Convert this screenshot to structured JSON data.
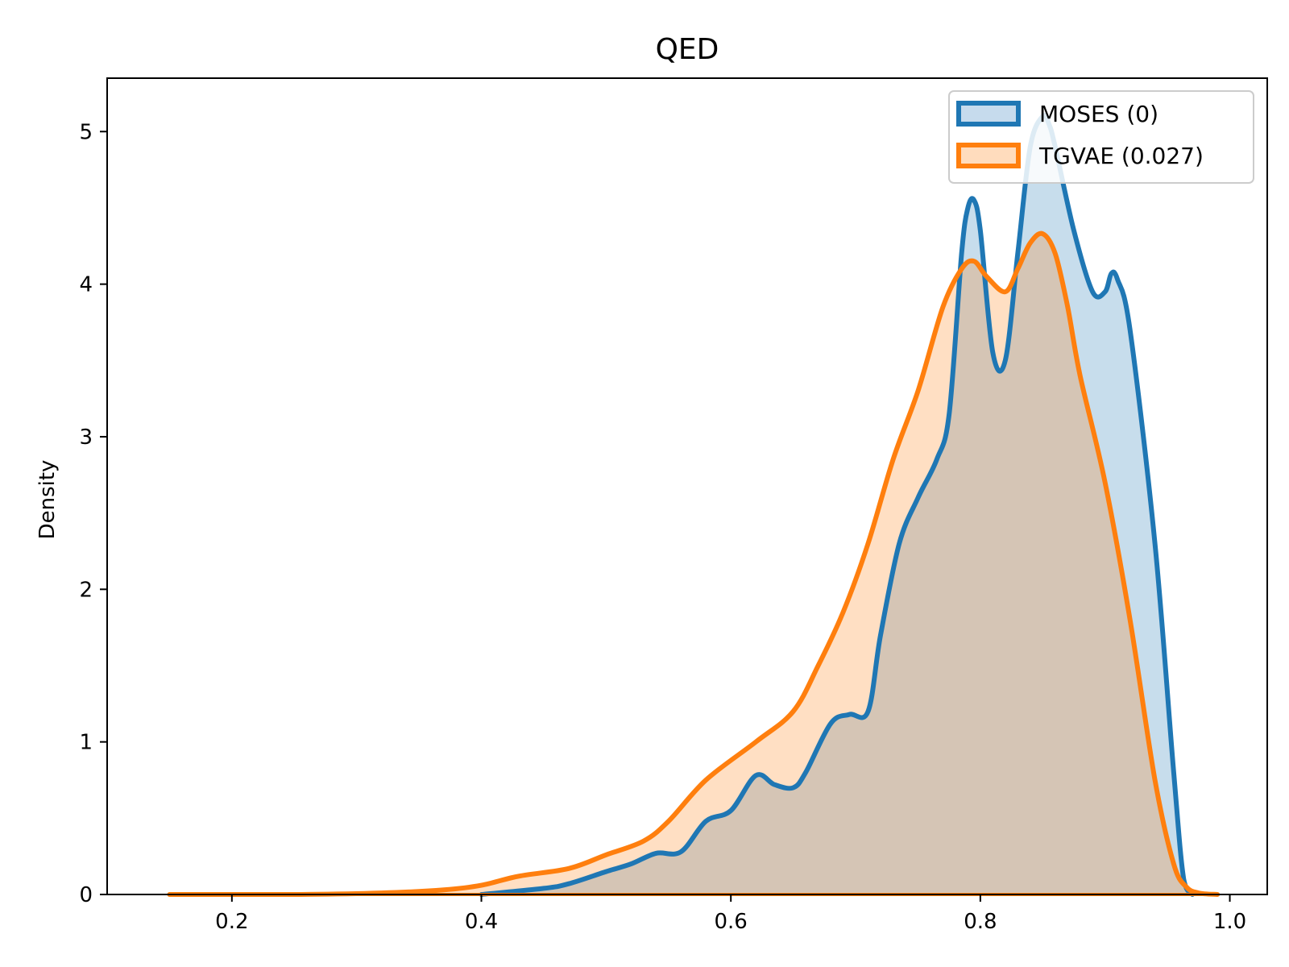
{
  "chart_data": {
    "type": "area",
    "title": "QED",
    "xlabel": "",
    "ylabel": "Density",
    "xlim": [
      0.1,
      1.03
    ],
    "ylim": [
      0,
      5.35
    ],
    "xticks": [
      0.2,
      0.4,
      0.6,
      0.8,
      1.0
    ],
    "xtick_labels": [
      "0.2",
      "0.4",
      "0.6",
      "0.8",
      "1.0"
    ],
    "yticks": [
      0,
      1,
      2,
      3,
      4,
      5
    ],
    "ytick_labels": [
      "0",
      "1",
      "2",
      "3",
      "4",
      "5"
    ],
    "grid": false,
    "legend_position": "top-right",
    "series": [
      {
        "name": "MOSES (0)",
        "color": "#1f77b4",
        "fill": "#c6dbed",
        "x": [
          0.4,
          0.45,
          0.47,
          0.5,
          0.52,
          0.54,
          0.56,
          0.58,
          0.6,
          0.62,
          0.635,
          0.65,
          0.66,
          0.68,
          0.695,
          0.71,
          0.72,
          0.735,
          0.75,
          0.765,
          0.775,
          0.785,
          0.79,
          0.795,
          0.8,
          0.81,
          0.82,
          0.83,
          0.84,
          0.85,
          0.855,
          0.86,
          0.875,
          0.89,
          0.9,
          0.905,
          0.91,
          0.92,
          0.94,
          0.955,
          0.963,
          0.97
        ],
        "y": [
          0.0,
          0.04,
          0.07,
          0.15,
          0.2,
          0.27,
          0.28,
          0.48,
          0.55,
          0.78,
          0.72,
          0.7,
          0.8,
          1.12,
          1.18,
          1.2,
          1.7,
          2.3,
          2.6,
          2.85,
          3.15,
          4.2,
          4.5,
          4.55,
          4.35,
          3.55,
          3.5,
          4.2,
          4.9,
          5.1,
          5.05,
          4.9,
          4.35,
          3.95,
          3.95,
          4.07,
          4.03,
          3.7,
          2.3,
          0.8,
          0.1,
          0.0
        ]
      },
      {
        "name": "TGVAE (0.027)",
        "color": "#ff7f0e",
        "fill": "#ffdcbd",
        "x": [
          0.15,
          0.25,
          0.32,
          0.37,
          0.4,
          0.43,
          0.47,
          0.5,
          0.53,
          0.55,
          0.58,
          0.62,
          0.65,
          0.67,
          0.69,
          0.71,
          0.73,
          0.75,
          0.77,
          0.785,
          0.795,
          0.805,
          0.82,
          0.83,
          0.84,
          0.85,
          0.86,
          0.87,
          0.88,
          0.9,
          0.92,
          0.94,
          0.955,
          0.965,
          0.975,
          0.99
        ],
        "y": [
          0.0,
          0.0,
          0.01,
          0.03,
          0.06,
          0.12,
          0.17,
          0.26,
          0.35,
          0.48,
          0.75,
          1.0,
          1.2,
          1.5,
          1.85,
          2.3,
          2.85,
          3.3,
          3.85,
          4.1,
          4.15,
          4.05,
          3.95,
          4.1,
          4.27,
          4.33,
          4.2,
          3.85,
          3.4,
          2.7,
          1.8,
          0.75,
          0.2,
          0.05,
          0.01,
          0.0
        ]
      }
    ]
  }
}
